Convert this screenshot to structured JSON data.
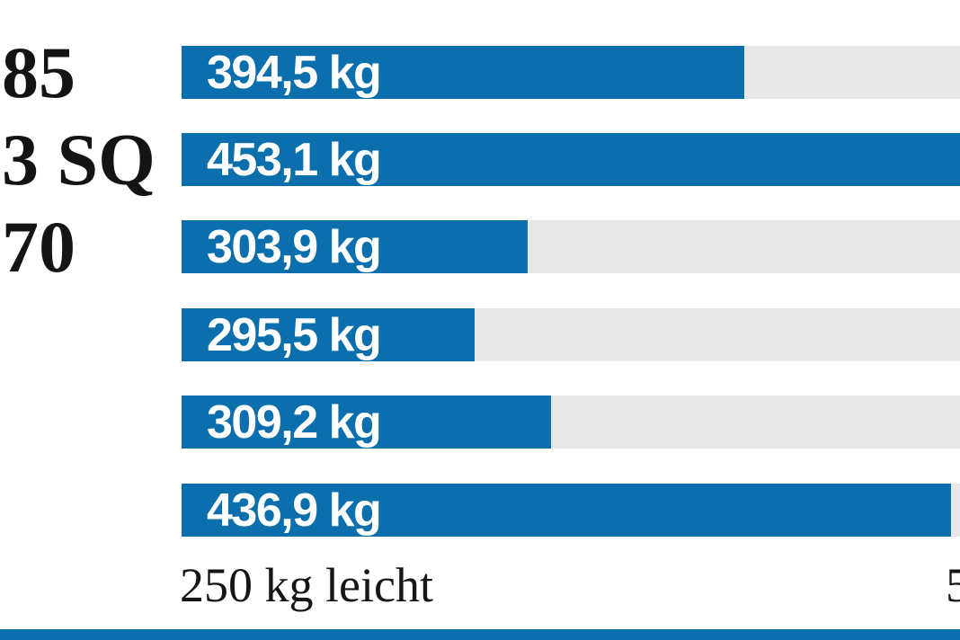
{
  "chart_data": {
    "type": "bar",
    "orientation": "horizontal",
    "unit": "kg",
    "xlim": [
      250,
      500
    ],
    "grid": false,
    "legend": false,
    "categories": [
      "85",
      "3 SQ",
      "70",
      "",
      "",
      ""
    ],
    "values": [
      394.5,
      453.1,
      303.9,
      295.5,
      309.2,
      436.9
    ],
    "rows": [
      {
        "category": "85",
        "value": 394.5,
        "value_label": "394,5 kg",
        "bar_pct": 72.3
      },
      {
        "category": "3 SQ",
        "value": 453.1,
        "value_label": "453,1 kg",
        "bar_pct": 100
      },
      {
        "category": "70",
        "value": 303.9,
        "value_label": "303,9 kg",
        "bar_pct": 44.5
      },
      {
        "category": "",
        "value": 295.5,
        "value_label": "295,5 kg",
        "bar_pct": 37.6
      },
      {
        "category": "",
        "value": 309.2,
        "value_label": "309,2 kg",
        "bar_pct": 47.5
      },
      {
        "category": "",
        "value": 436.9,
        "value_label": "436,9 kg",
        "bar_pct": 98.8
      }
    ],
    "xlabel_left": "250 kg leicht",
    "xlabel_right": "5",
    "colors": {
      "bar": "#0b6fad",
      "track": "#e7e7e7",
      "value_text": "#ffffff",
      "label_text": "#141414",
      "bottom_strip": "#0b6fad"
    }
  }
}
